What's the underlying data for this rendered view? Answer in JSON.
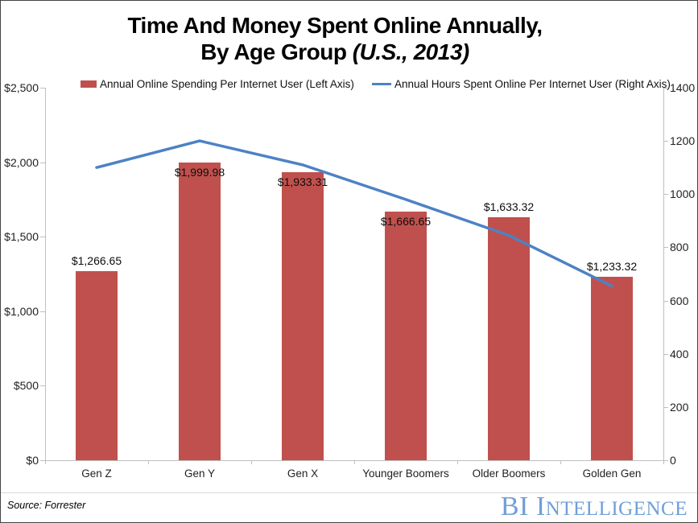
{
  "title": {
    "line1": "Time And Money Spent Online Annually,",
    "line2": "By Age Group",
    "line2_italic": "(U.S., 2013)"
  },
  "footer": {
    "source": "Source: Forrester",
    "logo_large": "BI I",
    "logo_small": "NTELLIGENCE",
    "logo_color": "#6f9fd8"
  },
  "chart_data": {
    "type": "combo: bar + line, dual axis",
    "title": "Time And Money Spent Online Annually, By Age Group (U.S., 2013)",
    "categories": [
      "Gen Z",
      "Gen Y",
      "Gen X",
      "Younger Boomers",
      "Older Boomers",
      "Golden Gen"
    ],
    "series": [
      {
        "name": "Annual Online Spending Per Internet User (Left Axis)",
        "type": "bar",
        "axis": "left",
        "color": "#c0504d",
        "values": [
          1266.65,
          1999.98,
          1933.31,
          1666.65,
          1633.32,
          1233.32
        ],
        "data_labels": [
          "$1,266.65",
          "$1,999.98",
          "$1,933.31",
          "$1,666.65",
          "$1,633.32",
          "$1,233.32"
        ],
        "label_placement": [
          "above",
          "inside",
          "inside",
          "inside",
          "above",
          "above"
        ]
      },
      {
        "name": "Annual Hours Spent Online Per Internet User (Right Axis)",
        "type": "line",
        "axis": "right",
        "color": "#4d82c4",
        "values": [
          1100,
          1200,
          1110,
          980,
          845,
          655
        ]
      }
    ],
    "left_axis": {
      "min": 0,
      "max": 2500,
      "tick_step": 500,
      "tick_labels_top_to_bottom": [
        "$2,500",
        "$2,000",
        "$1,500",
        "$1,000",
        "$500",
        "$0"
      ]
    },
    "right_axis": {
      "min": 0,
      "max": 1400,
      "tick_step": 200,
      "tick_labels_top_to_bottom": [
        "1400",
        "1200",
        "1000",
        "800",
        "600",
        "400",
        "200",
        "0"
      ]
    },
    "grid": false,
    "legend_position": "top"
  }
}
